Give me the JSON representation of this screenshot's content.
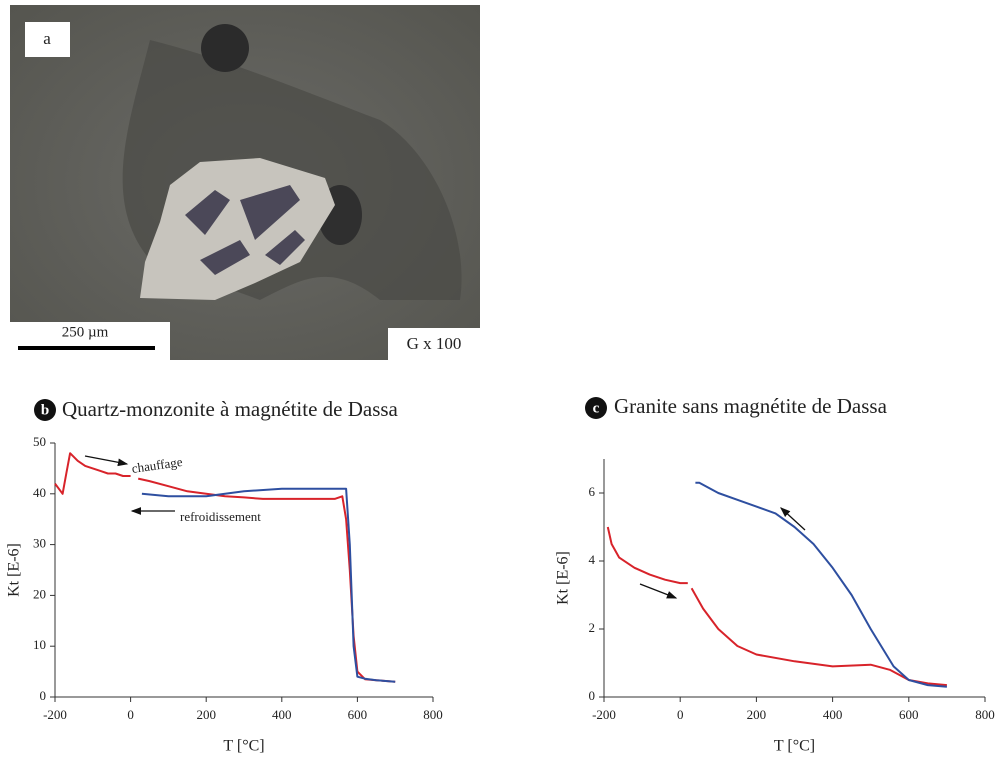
{
  "micrograph": {
    "label": "a",
    "scale_bar": "250 µm",
    "magnification": "G x 100"
  },
  "chart_data": [
    {
      "type": "line",
      "panel_label": "b",
      "title": "Quartz-monzonite à magnétite de Dassa",
      "x_label": "T [°C]",
      "y_label": "Kt [E-6]",
      "xlim": [
        -200,
        800
      ],
      "xticks": [
        -200,
        0,
        200,
        400,
        600,
        800
      ],
      "ylim": [
        0,
        50
      ],
      "yticks": [
        0,
        10,
        20,
        30,
        40,
        50
      ],
      "annotations": [
        "chauffage",
        "refroidissement"
      ],
      "series": [
        {
          "color": "#d8232a",
          "x": [
            -200,
            -190,
            -180,
            -170,
            -160,
            -140,
            -120,
            -100,
            -80,
            -60,
            -40,
            -20,
            0,
            10,
            20,
            50,
            100,
            150,
            200,
            250,
            300,
            350,
            400,
            450,
            500,
            540,
            560,
            570,
            580,
            590,
            600,
            620,
            650,
            700
          ],
          "values": [
            42,
            41,
            40,
            44,
            48,
            46.5,
            45.5,
            45,
            44.5,
            44,
            44,
            43.5,
            43.5,
            null,
            43,
            42.5,
            41.5,
            40.5,
            40,
            39.5,
            39.3,
            39,
            39,
            39,
            39,
            39,
            39.5,
            35,
            25,
            12,
            5,
            3.5,
            3.3,
            3
          ]
        },
        {
          "color": "#2e4fa0",
          "x": [
            700,
            650,
            620,
            600,
            590,
            580,
            570,
            560,
            500,
            400,
            300,
            200,
            100,
            30
          ],
          "values": [
            3,
            3.3,
            3.6,
            4,
            10,
            30,
            41,
            41,
            41,
            41,
            40.5,
            39.5,
            39.5,
            40
          ]
        }
      ]
    },
    {
      "type": "line",
      "panel_label": "c",
      "title": "Granite sans magnétite de Dassa",
      "x_label": "T [°C]",
      "y_label": "Kt [E-6]",
      "xlim": [
        -200,
        800
      ],
      "xticks": [
        -200,
        0,
        200,
        400,
        600,
        800
      ],
      "ylim": [
        0,
        7
      ],
      "yticks": [
        0,
        2,
        4,
        6
      ],
      "series": [
        {
          "color": "#d8232a",
          "x": [
            -190,
            -180,
            -160,
            -120,
            -80,
            -40,
            0,
            20,
            25,
            30,
            60,
            100,
            150,
            200,
            300,
            400,
            500,
            550,
            600,
            650,
            700
          ],
          "values": [
            5,
            4.5,
            4.1,
            3.8,
            3.6,
            3.45,
            3.35,
            3.35,
            null,
            3.2,
            2.6,
            2.0,
            1.5,
            1.25,
            1.05,
            0.9,
            0.95,
            0.8,
            0.5,
            0.4,
            0.35
          ]
        },
        {
          "color": "#2e4fa0",
          "x": [
            700,
            650,
            600,
            560,
            500,
            450,
            400,
            350,
            300,
            250,
            200,
            150,
            100,
            50,
            40
          ],
          "values": [
            0.3,
            0.35,
            0.5,
            0.9,
            2.0,
            3.0,
            3.8,
            4.5,
            5.0,
            5.4,
            5.6,
            5.8,
            6.0,
            6.3,
            6.3
          ]
        }
      ]
    }
  ]
}
